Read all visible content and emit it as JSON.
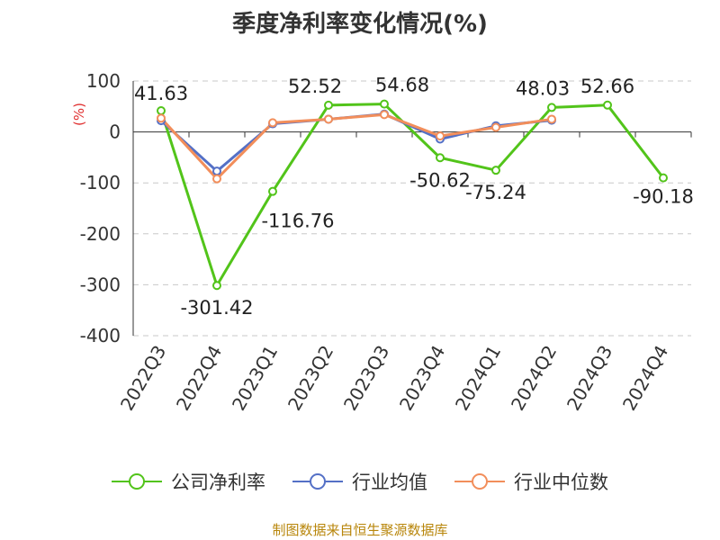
{
  "chart_data": {
    "type": "line",
    "title": "季度净利率变化情况(%)",
    "ylabel": "(%)",
    "ylim": [
      -400,
      100
    ],
    "yticks": [
      100,
      0,
      -100,
      -200,
      -300,
      -400
    ],
    "categories": [
      "2022Q3",
      "2022Q4",
      "2023Q1",
      "2023Q2",
      "2023Q3",
      "2023Q4",
      "2024Q1",
      "2024Q2",
      "2024Q3",
      "2024Q4"
    ],
    "grid": true,
    "legend_position": "bottom",
    "series": [
      {
        "name": "公司净利率",
        "color": "#52c41a",
        "values": [
          41.63,
          -301.42,
          -116.76,
          52.52,
          54.68,
          -50.62,
          -75.24,
          48.03,
          52.66,
          -90.18
        ],
        "labels": [
          "41.63",
          "-301.42",
          "-116.76",
          "52.52",
          "54.68",
          "-50.62",
          "-75.24",
          "48.03",
          "52.66",
          "-90.18"
        ],
        "label_offsets": [
          [
            0,
            -12
          ],
          [
            0,
            32
          ],
          [
            28,
            40
          ],
          [
            -15,
            -14
          ],
          [
            20,
            -14
          ],
          [
            0,
            32
          ],
          [
            0,
            32
          ],
          [
            -10,
            -14
          ],
          [
            0,
            -14
          ],
          [
            0,
            28
          ]
        ]
      },
      {
        "name": "行业均值",
        "color": "#5470c6",
        "values": [
          22,
          -77,
          16,
          25,
          35,
          -14,
          12,
          23,
          null,
          null
        ]
      },
      {
        "name": "行业中位数",
        "color": "#f28e5b",
        "values": [
          27,
          -92,
          18,
          25,
          34,
          -8,
          9,
          25,
          null,
          null
        ]
      }
    ]
  },
  "source": {
    "text": "制图数据来自恒生聚源数据库",
    "color": "#b8860b"
  }
}
